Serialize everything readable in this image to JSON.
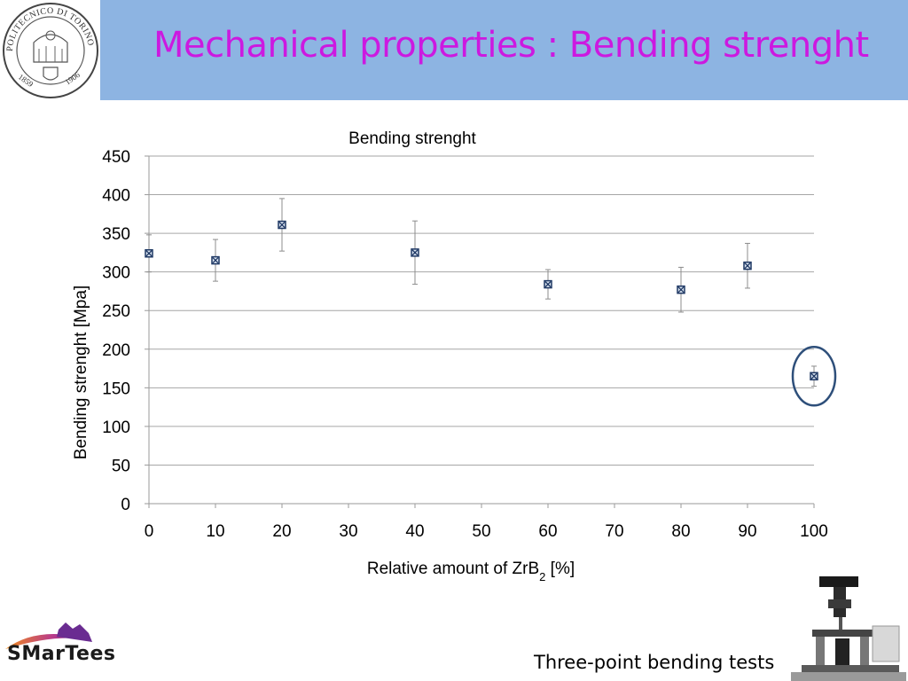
{
  "header": {
    "title": "Mechanical properties : Bending strenght",
    "seal_text": "POLITECNICO DI TORINO",
    "seal_year_left": "1859",
    "seal_year_right": "1906"
  },
  "footer": {
    "logo_text": "SMarTees",
    "caption": "Three-point bending tests"
  },
  "chart_data": {
    "type": "scatter",
    "title": "Bending strenght",
    "xlabel_main": "Relative amount of ZrB",
    "xlabel_sub": "2",
    "xlabel_tail": " [%]",
    "ylabel": "Bending strenght [Mpa]",
    "xlim": [
      0,
      100
    ],
    "ylim": [
      0,
      450
    ],
    "xticks": [
      0,
      10,
      20,
      30,
      40,
      50,
      60,
      70,
      80,
      90,
      100
    ],
    "yticks": [
      0,
      50,
      100,
      150,
      200,
      250,
      300,
      350,
      400,
      450
    ],
    "grid": "horizontal",
    "points": [
      {
        "x": 0,
        "y": 324,
        "err_low": 300,
        "err_high": 348
      },
      {
        "x": 10,
        "y": 315,
        "err_low": 288,
        "err_high": 342
      },
      {
        "x": 20,
        "y": 361,
        "err_low": 327,
        "err_high": 395
      },
      {
        "x": 40,
        "y": 325,
        "err_low": 284,
        "err_high": 366
      },
      {
        "x": 60,
        "y": 284,
        "err_low": 265,
        "err_high": 303
      },
      {
        "x": 80,
        "y": 277,
        "err_low": 248,
        "err_high": 306
      },
      {
        "x": 90,
        "y": 308,
        "err_low": 279,
        "err_high": 337
      },
      {
        "x": 100,
        "y": 165,
        "err_low": 152,
        "err_high": 178
      }
    ],
    "highlight_x": 100,
    "marker_color": "#1f3864",
    "highlight_color": "#2e4f7a"
  }
}
